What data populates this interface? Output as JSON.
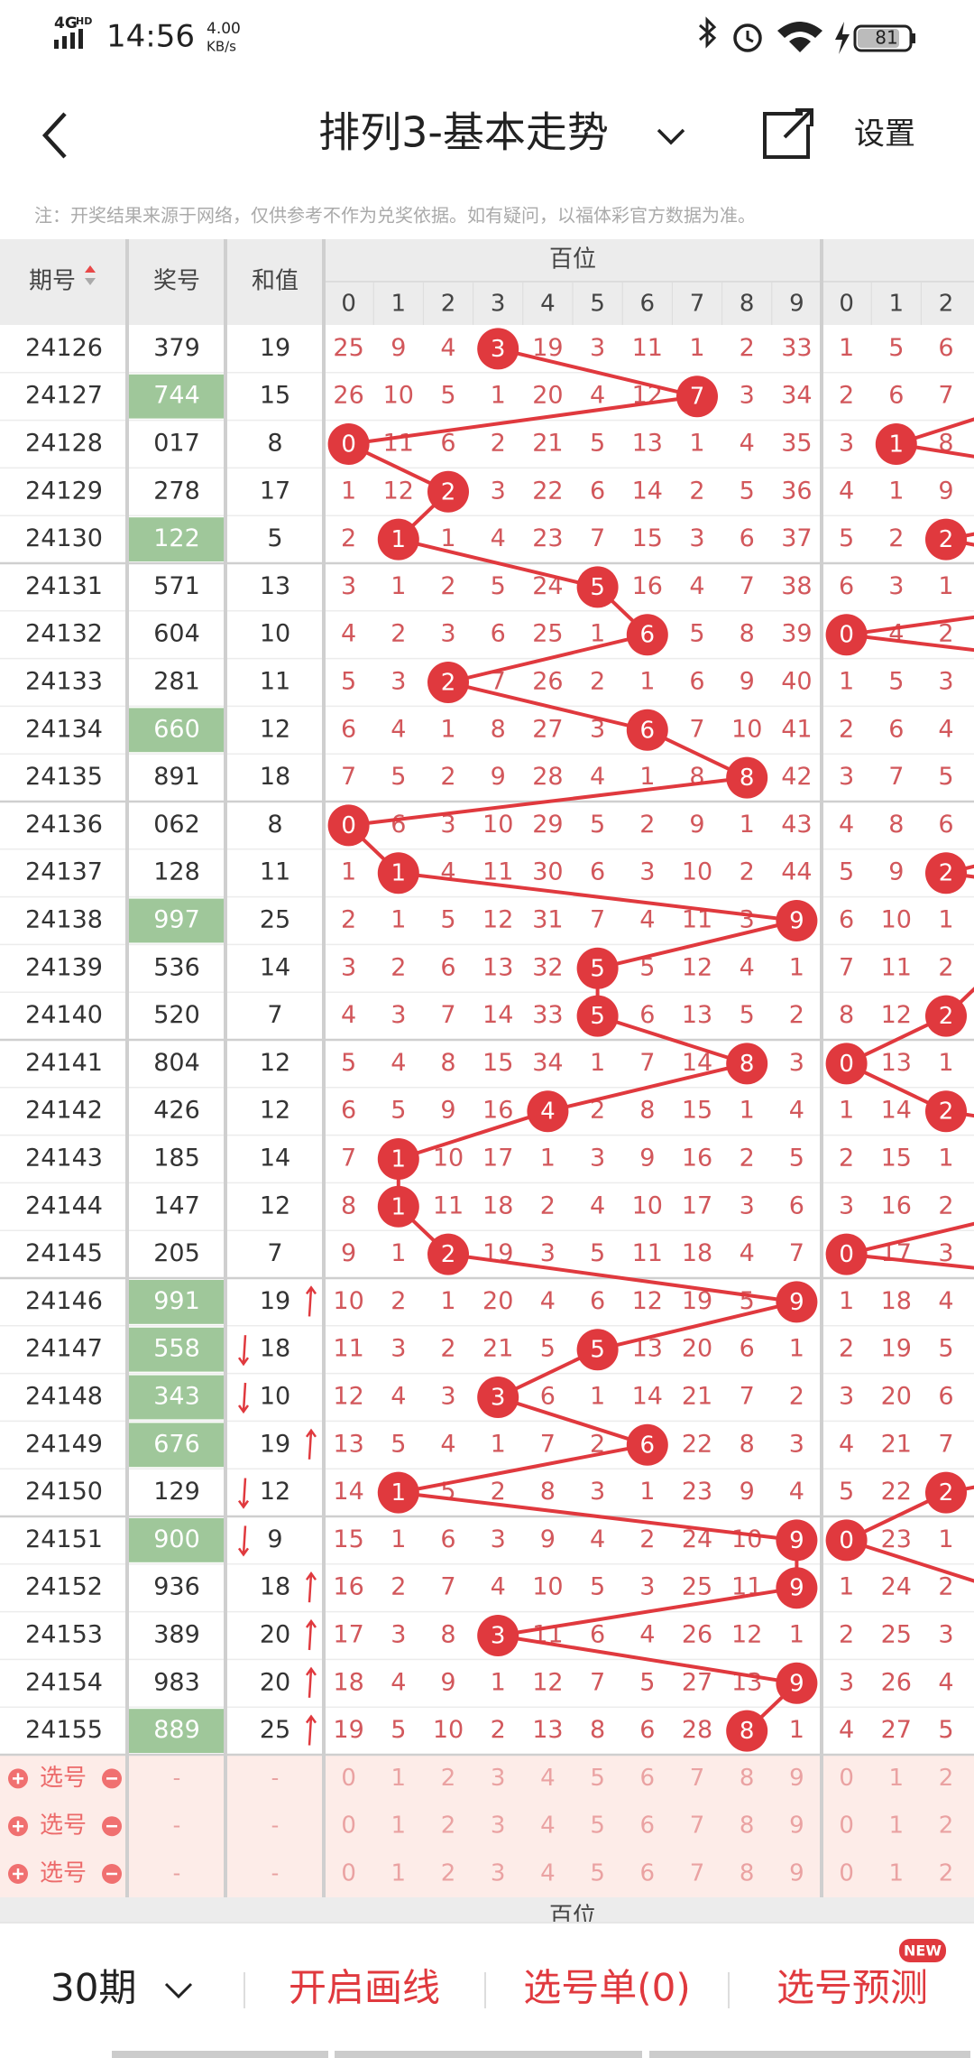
{
  "status_bar": {
    "network": "4G",
    "hd": "HD",
    "time": "14:56",
    "speed": "4.00",
    "speed_unit": "KB/s",
    "battery": "81"
  },
  "header": {
    "title": "排列3-基本走势",
    "settings": "设置"
  },
  "notice": "注：开奖结果来源于网络，仅供参考不作为兑奖依据。如有疑问，以福体彩官方数据为准。",
  "table": {
    "columns": [
      "期号",
      "奖号",
      "和值"
    ],
    "group": "百位",
    "digits": [
      0,
      1,
      2,
      3,
      4,
      5,
      6,
      7,
      8,
      9
    ],
    "tens_digits": [
      0,
      1,
      2
    ],
    "rows": [
      {
        "period": 24126,
        "number": "379",
        "sum": 19,
        "hundreds": [
          25,
          9,
          4,
          3,
          19,
          3,
          11,
          1,
          2,
          33
        ],
        "tens": [
          1,
          5,
          6
        ]
      },
      {
        "period": 24127,
        "number": "744",
        "sum": 15,
        "hundreds": [
          26,
          10,
          5,
          1,
          20,
          4,
          12,
          7,
          3,
          34
        ],
        "tens": [
          2,
          6,
          7
        ]
      },
      {
        "period": 24128,
        "number": "017",
        "sum": 8,
        "hundreds": [
          0,
          11,
          6,
          2,
          21,
          5,
          13,
          1,
          4,
          35
        ],
        "tens": [
          3,
          1,
          8
        ]
      },
      {
        "period": 24129,
        "number": "278",
        "sum": 17,
        "hundreds": [
          1,
          12,
          2,
          3,
          22,
          6,
          14,
          2,
          5,
          36
        ],
        "tens": [
          4,
          1,
          9
        ]
      },
      {
        "period": 24130,
        "number": "122",
        "sum": 5,
        "hundreds": [
          2,
          1,
          1,
          4,
          23,
          7,
          15,
          3,
          6,
          37
        ],
        "tens": [
          5,
          2,
          2
        ]
      },
      {
        "period": 24131,
        "number": "571",
        "sum": 13,
        "hundreds": [
          3,
          1,
          2,
          5,
          24,
          5,
          16,
          4,
          7,
          38
        ],
        "tens": [
          6,
          3,
          1
        ]
      },
      {
        "period": 24132,
        "number": "604",
        "sum": 10,
        "hundreds": [
          4,
          2,
          3,
          6,
          25,
          1,
          6,
          5,
          8,
          39
        ],
        "tens": [
          0,
          4,
          2
        ]
      },
      {
        "period": 24133,
        "number": "281",
        "sum": 11,
        "hundreds": [
          5,
          3,
          2,
          7,
          26,
          2,
          1,
          6,
          9,
          40
        ],
        "tens": [
          1,
          5,
          3
        ]
      },
      {
        "period": 24134,
        "number": "660",
        "sum": 12,
        "hundreds": [
          6,
          4,
          1,
          8,
          27,
          3,
          6,
          7,
          10,
          41
        ],
        "tens": [
          2,
          6,
          4
        ]
      },
      {
        "period": 24135,
        "number": "891",
        "sum": 18,
        "hundreds": [
          7,
          5,
          2,
          9,
          28,
          4,
          1,
          8,
          8,
          42
        ],
        "tens": [
          3,
          7,
          5
        ]
      },
      {
        "period": 24136,
        "number": "062",
        "sum": 8,
        "hundreds": [
          0,
          6,
          3,
          10,
          29,
          5,
          2,
          9,
          1,
          43
        ],
        "tens": [
          4,
          8,
          6
        ]
      },
      {
        "period": 24137,
        "number": "128",
        "sum": 11,
        "hundreds": [
          1,
          1,
          4,
          11,
          30,
          6,
          3,
          10,
          2,
          44
        ],
        "tens": [
          5,
          9,
          2
        ]
      },
      {
        "period": 24138,
        "number": "997",
        "sum": 25,
        "hundreds": [
          2,
          1,
          5,
          12,
          31,
          7,
          4,
          11,
          3,
          9
        ],
        "tens": [
          6,
          10,
          1
        ]
      },
      {
        "period": 24139,
        "number": "536",
        "sum": 14,
        "hundreds": [
          3,
          2,
          6,
          13,
          32,
          5,
          5,
          12,
          4,
          1
        ],
        "tens": [
          7,
          11,
          2
        ]
      },
      {
        "period": 24140,
        "number": "520",
        "sum": 7,
        "hundreds": [
          4,
          3,
          7,
          14,
          33,
          5,
          6,
          13,
          5,
          2
        ],
        "tens": [
          8,
          12,
          2
        ]
      },
      {
        "period": 24141,
        "number": "804",
        "sum": 12,
        "hundreds": [
          5,
          4,
          8,
          15,
          34,
          1,
          7,
          14,
          8,
          3
        ],
        "tens": [
          0,
          13,
          1
        ]
      },
      {
        "period": 24142,
        "number": "426",
        "sum": 12,
        "hundreds": [
          6,
          5,
          9,
          16,
          4,
          2,
          8,
          15,
          1,
          4
        ],
        "tens": [
          1,
          14,
          2
        ]
      },
      {
        "period": 24143,
        "number": "185",
        "sum": 14,
        "hundreds": [
          7,
          1,
          10,
          17,
          1,
          3,
          9,
          16,
          2,
          5
        ],
        "tens": [
          2,
          15,
          1
        ]
      },
      {
        "period": 24144,
        "number": "147",
        "sum": 12,
        "hundreds": [
          8,
          1,
          11,
          18,
          2,
          4,
          10,
          17,
          3,
          6
        ],
        "tens": [
          3,
          16,
          2
        ]
      },
      {
        "period": 24145,
        "number": "205",
        "sum": 7,
        "hundreds": [
          9,
          1,
          2,
          19,
          3,
          5,
          11,
          18,
          4,
          7
        ],
        "tens": [
          0,
          17,
          3
        ]
      },
      {
        "period": 24146,
        "number": "991",
        "sum": 19,
        "trend": "up",
        "hundreds": [
          10,
          2,
          1,
          20,
          4,
          6,
          12,
          19,
          5,
          9
        ],
        "tens": [
          1,
          18,
          4
        ]
      },
      {
        "period": 24147,
        "number": "558",
        "sum": 18,
        "trend": "down",
        "hundreds": [
          11,
          3,
          2,
          21,
          5,
          5,
          13,
          20,
          6,
          1
        ],
        "tens": [
          2,
          19,
          5
        ]
      },
      {
        "period": 24148,
        "number": "343",
        "sum": 10,
        "trend": "down",
        "hundreds": [
          12,
          4,
          3,
          3,
          6,
          1,
          14,
          21,
          7,
          2
        ],
        "tens": [
          3,
          20,
          6
        ]
      },
      {
        "period": 24149,
        "number": "676",
        "sum": 19,
        "trend": "up",
        "hundreds": [
          13,
          5,
          4,
          1,
          7,
          2,
          6,
          22,
          8,
          3
        ],
        "tens": [
          4,
          21,
          7
        ]
      },
      {
        "period": 24150,
        "number": "129",
        "sum": 12,
        "trend": "down",
        "hundreds": [
          14,
          1,
          5,
          2,
          8,
          3,
          1,
          23,
          9,
          4
        ],
        "tens": [
          5,
          22,
          2
        ]
      },
      {
        "period": 24151,
        "number": "900",
        "sum": 9,
        "trend": "down",
        "hundreds": [
          15,
          1,
          6,
          3,
          9,
          4,
          2,
          24,
          10,
          9
        ],
        "tens": [
          0,
          23,
          1
        ]
      },
      {
        "period": 24152,
        "number": "936",
        "sum": 18,
        "trend": "up",
        "hundreds": [
          16,
          2,
          7,
          4,
          10,
          5,
          3,
          25,
          11,
          9
        ],
        "tens": [
          1,
          24,
          2
        ]
      },
      {
        "period": 24153,
        "number": "389",
        "sum": 20,
        "trend": "up",
        "hundreds": [
          17,
          3,
          8,
          3,
          11,
          6,
          4,
          26,
          12,
          1
        ],
        "tens": [
          2,
          25,
          3
        ]
      },
      {
        "period": 24154,
        "number": "983",
        "sum": 20,
        "trend": "up",
        "hundreds": [
          18,
          4,
          9,
          1,
          12,
          7,
          5,
          27,
          13,
          9
        ],
        "tens": [
          3,
          26,
          4
        ]
      },
      {
        "period": 24155,
        "number": "889",
        "sum": 25,
        "trend": "up",
        "hundreds": [
          19,
          5,
          10,
          2,
          13,
          8,
          6,
          28,
          8,
          1
        ],
        "tens": [
          4,
          27,
          5
        ]
      }
    ],
    "select_rows": [
      {
        "label": "选号",
        "number": "-",
        "sum": "-"
      },
      {
        "label": "选号",
        "number": "-",
        "sum": "-"
      },
      {
        "label": "选号",
        "number": "-",
        "sum": "-"
      }
    ]
  },
  "footer": {
    "periods": "30期",
    "draw_line": "开启画线",
    "select_list": "选号单(0)",
    "predict": "选号预测",
    "badge": "NEW"
  }
}
